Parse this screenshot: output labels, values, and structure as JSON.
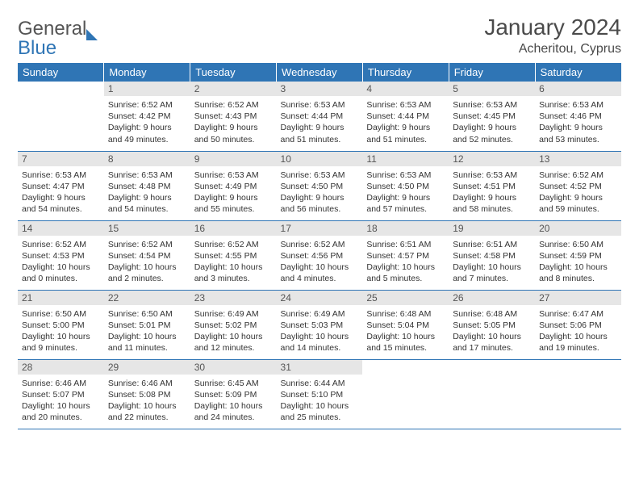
{
  "logo": {
    "word1": "General",
    "word2": "Blue"
  },
  "title": "January 2024",
  "subtitle": "Acheritou, Cyprus",
  "colors": {
    "header_bg": "#2f75b5",
    "header_text": "#ffffff",
    "daynum_bg": "#e6e6e6",
    "text": "#333333",
    "rule": "#2f75b5"
  },
  "weekdays": [
    "Sunday",
    "Monday",
    "Tuesday",
    "Wednesday",
    "Thursday",
    "Friday",
    "Saturday"
  ],
  "weeks": [
    [
      {
        "day": "",
        "sunrise": "",
        "sunset": "",
        "daylight": ""
      },
      {
        "day": "1",
        "sunrise": "Sunrise: 6:52 AM",
        "sunset": "Sunset: 4:42 PM",
        "daylight": "Daylight: 9 hours and 49 minutes."
      },
      {
        "day": "2",
        "sunrise": "Sunrise: 6:52 AM",
        "sunset": "Sunset: 4:43 PM",
        "daylight": "Daylight: 9 hours and 50 minutes."
      },
      {
        "day": "3",
        "sunrise": "Sunrise: 6:53 AM",
        "sunset": "Sunset: 4:44 PM",
        "daylight": "Daylight: 9 hours and 51 minutes."
      },
      {
        "day": "4",
        "sunrise": "Sunrise: 6:53 AM",
        "sunset": "Sunset: 4:44 PM",
        "daylight": "Daylight: 9 hours and 51 minutes."
      },
      {
        "day": "5",
        "sunrise": "Sunrise: 6:53 AM",
        "sunset": "Sunset: 4:45 PM",
        "daylight": "Daylight: 9 hours and 52 minutes."
      },
      {
        "day": "6",
        "sunrise": "Sunrise: 6:53 AM",
        "sunset": "Sunset: 4:46 PM",
        "daylight": "Daylight: 9 hours and 53 minutes."
      }
    ],
    [
      {
        "day": "7",
        "sunrise": "Sunrise: 6:53 AM",
        "sunset": "Sunset: 4:47 PM",
        "daylight": "Daylight: 9 hours and 54 minutes."
      },
      {
        "day": "8",
        "sunrise": "Sunrise: 6:53 AM",
        "sunset": "Sunset: 4:48 PM",
        "daylight": "Daylight: 9 hours and 54 minutes."
      },
      {
        "day": "9",
        "sunrise": "Sunrise: 6:53 AM",
        "sunset": "Sunset: 4:49 PM",
        "daylight": "Daylight: 9 hours and 55 minutes."
      },
      {
        "day": "10",
        "sunrise": "Sunrise: 6:53 AM",
        "sunset": "Sunset: 4:50 PM",
        "daylight": "Daylight: 9 hours and 56 minutes."
      },
      {
        "day": "11",
        "sunrise": "Sunrise: 6:53 AM",
        "sunset": "Sunset: 4:50 PM",
        "daylight": "Daylight: 9 hours and 57 minutes."
      },
      {
        "day": "12",
        "sunrise": "Sunrise: 6:53 AM",
        "sunset": "Sunset: 4:51 PM",
        "daylight": "Daylight: 9 hours and 58 minutes."
      },
      {
        "day": "13",
        "sunrise": "Sunrise: 6:52 AM",
        "sunset": "Sunset: 4:52 PM",
        "daylight": "Daylight: 9 hours and 59 minutes."
      }
    ],
    [
      {
        "day": "14",
        "sunrise": "Sunrise: 6:52 AM",
        "sunset": "Sunset: 4:53 PM",
        "daylight": "Daylight: 10 hours and 0 minutes."
      },
      {
        "day": "15",
        "sunrise": "Sunrise: 6:52 AM",
        "sunset": "Sunset: 4:54 PM",
        "daylight": "Daylight: 10 hours and 2 minutes."
      },
      {
        "day": "16",
        "sunrise": "Sunrise: 6:52 AM",
        "sunset": "Sunset: 4:55 PM",
        "daylight": "Daylight: 10 hours and 3 minutes."
      },
      {
        "day": "17",
        "sunrise": "Sunrise: 6:52 AM",
        "sunset": "Sunset: 4:56 PM",
        "daylight": "Daylight: 10 hours and 4 minutes."
      },
      {
        "day": "18",
        "sunrise": "Sunrise: 6:51 AM",
        "sunset": "Sunset: 4:57 PM",
        "daylight": "Daylight: 10 hours and 5 minutes."
      },
      {
        "day": "19",
        "sunrise": "Sunrise: 6:51 AM",
        "sunset": "Sunset: 4:58 PM",
        "daylight": "Daylight: 10 hours and 7 minutes."
      },
      {
        "day": "20",
        "sunrise": "Sunrise: 6:50 AM",
        "sunset": "Sunset: 4:59 PM",
        "daylight": "Daylight: 10 hours and 8 minutes."
      }
    ],
    [
      {
        "day": "21",
        "sunrise": "Sunrise: 6:50 AM",
        "sunset": "Sunset: 5:00 PM",
        "daylight": "Daylight: 10 hours and 9 minutes."
      },
      {
        "day": "22",
        "sunrise": "Sunrise: 6:50 AM",
        "sunset": "Sunset: 5:01 PM",
        "daylight": "Daylight: 10 hours and 11 minutes."
      },
      {
        "day": "23",
        "sunrise": "Sunrise: 6:49 AM",
        "sunset": "Sunset: 5:02 PM",
        "daylight": "Daylight: 10 hours and 12 minutes."
      },
      {
        "day": "24",
        "sunrise": "Sunrise: 6:49 AM",
        "sunset": "Sunset: 5:03 PM",
        "daylight": "Daylight: 10 hours and 14 minutes."
      },
      {
        "day": "25",
        "sunrise": "Sunrise: 6:48 AM",
        "sunset": "Sunset: 5:04 PM",
        "daylight": "Daylight: 10 hours and 15 minutes."
      },
      {
        "day": "26",
        "sunrise": "Sunrise: 6:48 AM",
        "sunset": "Sunset: 5:05 PM",
        "daylight": "Daylight: 10 hours and 17 minutes."
      },
      {
        "day": "27",
        "sunrise": "Sunrise: 6:47 AM",
        "sunset": "Sunset: 5:06 PM",
        "daylight": "Daylight: 10 hours and 19 minutes."
      }
    ],
    [
      {
        "day": "28",
        "sunrise": "Sunrise: 6:46 AM",
        "sunset": "Sunset: 5:07 PM",
        "daylight": "Daylight: 10 hours and 20 minutes."
      },
      {
        "day": "29",
        "sunrise": "Sunrise: 6:46 AM",
        "sunset": "Sunset: 5:08 PM",
        "daylight": "Daylight: 10 hours and 22 minutes."
      },
      {
        "day": "30",
        "sunrise": "Sunrise: 6:45 AM",
        "sunset": "Sunset: 5:09 PM",
        "daylight": "Daylight: 10 hours and 24 minutes."
      },
      {
        "day": "31",
        "sunrise": "Sunrise: 6:44 AM",
        "sunset": "Sunset: 5:10 PM",
        "daylight": "Daylight: 10 hours and 25 minutes."
      },
      {
        "day": "",
        "sunrise": "",
        "sunset": "",
        "daylight": ""
      },
      {
        "day": "",
        "sunrise": "",
        "sunset": "",
        "daylight": ""
      },
      {
        "day": "",
        "sunrise": "",
        "sunset": "",
        "daylight": ""
      }
    ]
  ]
}
